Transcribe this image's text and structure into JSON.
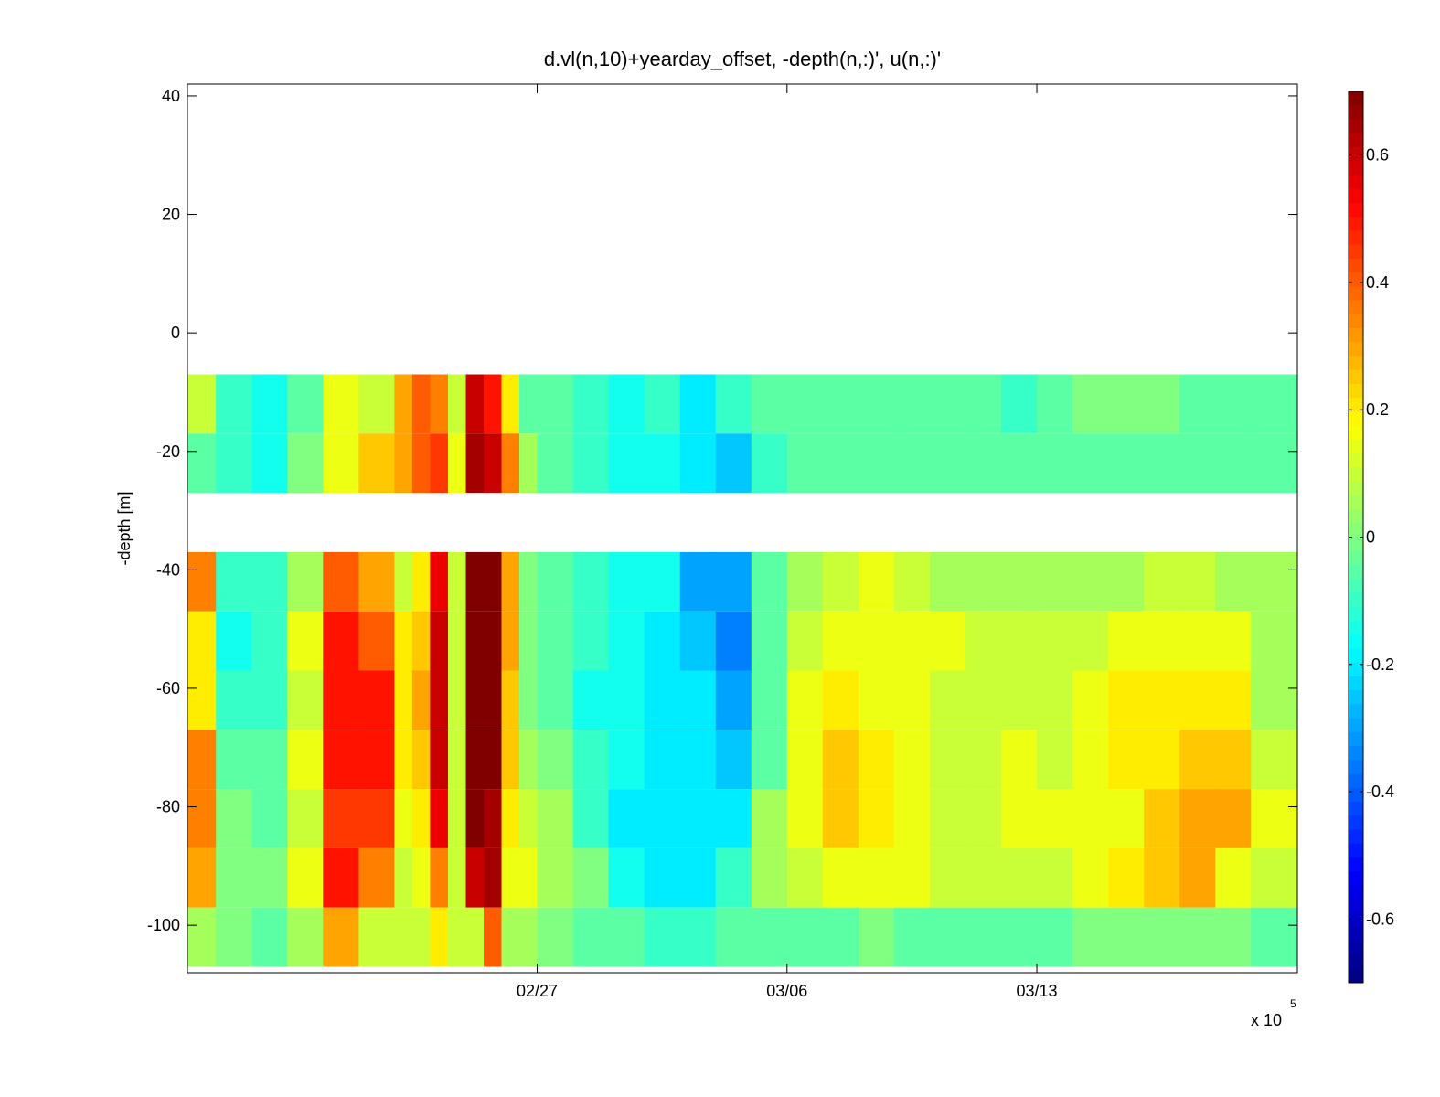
{
  "chart_data": {
    "type": "heatmap",
    "title": "d.vl(n,10)+yearday_offset, -depth(n,:)', u(n,:)'",
    "xlabel": "",
    "ylabel": "-depth [m]",
    "x_multiplier_label": "x 10",
    "x_multiplier_exponent": "5",
    "xlim_days_from_0227": [
      -9.8,
      21.3
    ],
    "x_ticks": [
      {
        "label": "02/27",
        "day": 0
      },
      {
        "label": "03/06",
        "day": 7
      },
      {
        "label": "03/13",
        "day": 14
      }
    ],
    "ylim": [
      -108,
      42
    ],
    "y_ticks": [
      40,
      20,
      0,
      -20,
      -40,
      -60,
      -80,
      -100
    ],
    "colorbar": {
      "colormap": "jet",
      "clim": [
        -0.7,
        0.7
      ],
      "ticks": [
        0.6,
        0.4,
        0.2,
        0,
        -0.2,
        -0.4,
        -0.6
      ],
      "tick_labels": [
        "0.6",
        "0.4",
        "0.2",
        "0",
        "-0.2",
        "-0.4",
        "-0.6"
      ]
    },
    "depth_bins": [
      {
        "top": -7,
        "bottom": -17
      },
      {
        "top": -17,
        "bottom": -27
      },
      {
        "top": -37,
        "bottom": -47
      },
      {
        "top": -47,
        "bottom": -57
      },
      {
        "top": -57,
        "bottom": -67
      },
      {
        "top": -67,
        "bottom": -77
      },
      {
        "top": -77,
        "bottom": -87
      },
      {
        "top": -87,
        "bottom": -97
      },
      {
        "top": -97,
        "bottom": -107
      }
    ],
    "bin_gap_note": "no data between -27 and -37 m",
    "time_segments_days_from_0227": [
      -9.8,
      -9,
      -8,
      -7,
      -6,
      -5,
      -4,
      -3.5,
      -3,
      -2.5,
      -2,
      -1.5,
      -1,
      -0.5,
      0,
      1,
      2,
      3,
      4,
      5,
      6,
      7,
      8,
      9,
      10,
      11,
      12,
      13,
      14,
      15,
      16,
      17,
      18,
      19,
      20,
      21.3
    ],
    "u_values": [
      [
        0.1,
        -0.1,
        -0.15,
        -0.05,
        0.15,
        0.1,
        0.3,
        0.4,
        0.35,
        0.1,
        0.6,
        0.5,
        0.2,
        -0.05,
        -0.05,
        -0.1,
        -0.15,
        -0.1,
        -0.2,
        -0.1,
        -0.05,
        -0.05,
        -0.05,
        -0.05,
        -0.05,
        -0.05,
        -0.05,
        -0.1,
        -0.05,
        0,
        0,
        0,
        -0.05,
        -0.05,
        -0.05
      ],
      [
        -0.05,
        -0.1,
        -0.15,
        0,
        0.15,
        0.25,
        0.3,
        0.4,
        0.45,
        0.15,
        0.65,
        0.6,
        0.35,
        0.05,
        -0.05,
        -0.1,
        -0.15,
        -0.15,
        -0.2,
        -0.25,
        -0.1,
        -0.05,
        -0.05,
        -0.05,
        -0.05,
        -0.05,
        -0.05,
        -0.05,
        -0.05,
        -0.05,
        -0.05,
        -0.05,
        -0.05,
        -0.05,
        -0.05
      ],
      [
        0.35,
        -0.1,
        -0.1,
        0.05,
        0.4,
        0.3,
        0.1,
        0.2,
        0.55,
        0.1,
        0.7,
        0.7,
        0.3,
        0,
        -0.05,
        -0.1,
        -0.15,
        -0.15,
        -0.3,
        -0.3,
        -0.05,
        0.05,
        0.1,
        0.15,
        0.1,
        0.05,
        0.05,
        0.05,
        0.05,
        0.05,
        0.05,
        0.1,
        0.1,
        0.05,
        0.05
      ],
      [
        0.2,
        -0.15,
        -0.1,
        0.15,
        0.5,
        0.4,
        0.2,
        0.25,
        0.6,
        0.1,
        0.7,
        0.7,
        0.3,
        0,
        -0.05,
        -0.1,
        -0.15,
        -0.2,
        -0.25,
        -0.35,
        -0.05,
        0.1,
        0.15,
        0.15,
        0.15,
        0.15,
        0.1,
        0.1,
        0.1,
        0.1,
        0.15,
        0.15,
        0.15,
        0.15,
        0.05
      ],
      [
        0.2,
        -0.1,
        -0.1,
        0.1,
        0.5,
        0.5,
        0.2,
        0.3,
        0.6,
        0.1,
        0.7,
        0.7,
        0.25,
        0,
        -0.05,
        -0.15,
        -0.15,
        -0.2,
        -0.2,
        -0.3,
        -0.05,
        0.15,
        0.2,
        0.15,
        0.15,
        0.1,
        0.1,
        0.1,
        0.1,
        0.15,
        0.2,
        0.2,
        0.2,
        0.2,
        0.05
      ],
      [
        0.35,
        -0.05,
        -0.05,
        0.15,
        0.5,
        0.5,
        0.2,
        0.25,
        0.6,
        0.1,
        0.7,
        0.7,
        0.25,
        0.05,
        0,
        -0.1,
        -0.15,
        -0.2,
        -0.2,
        -0.25,
        -0.05,
        0.15,
        0.25,
        0.2,
        0.15,
        0.1,
        0.1,
        0.15,
        0.1,
        0.15,
        0.2,
        0.2,
        0.25,
        0.25,
        0.1
      ],
      [
        0.35,
        0,
        -0.05,
        0.1,
        0.45,
        0.45,
        0.15,
        0.2,
        0.55,
        0.1,
        0.7,
        0.65,
        0.2,
        0.1,
        0.05,
        -0.1,
        -0.2,
        -0.2,
        -0.2,
        -0.2,
        0.05,
        0.15,
        0.25,
        0.2,
        0.15,
        0.1,
        0.1,
        0.15,
        0.15,
        0.15,
        0.15,
        0.25,
        0.3,
        0.3,
        0.15
      ],
      [
        0.3,
        0,
        0,
        0.15,
        0.5,
        0.35,
        0.1,
        0.15,
        0.35,
        0.1,
        0.6,
        0.65,
        0.15,
        0.15,
        0.05,
        0,
        -0.15,
        -0.2,
        -0.2,
        -0.1,
        0.05,
        0.1,
        0.15,
        0.15,
        0.15,
        0.1,
        0.1,
        0.1,
        0.1,
        0.15,
        0.2,
        0.25,
        0.3,
        0.15,
        0.1
      ],
      [
        0.05,
        0,
        -0.05,
        0.05,
        0.3,
        0.1,
        0.1,
        0.1,
        0.2,
        0.1,
        0.1,
        0.4,
        0.05,
        0.05,
        0,
        -0.05,
        -0.05,
        -0.1,
        -0.1,
        -0.05,
        -0.05,
        -0.05,
        -0.05,
        0,
        -0.05,
        -0.05,
        -0.05,
        -0.05,
        -0.05,
        0,
        0,
        0,
        0,
        0,
        -0.05
      ]
    ]
  }
}
